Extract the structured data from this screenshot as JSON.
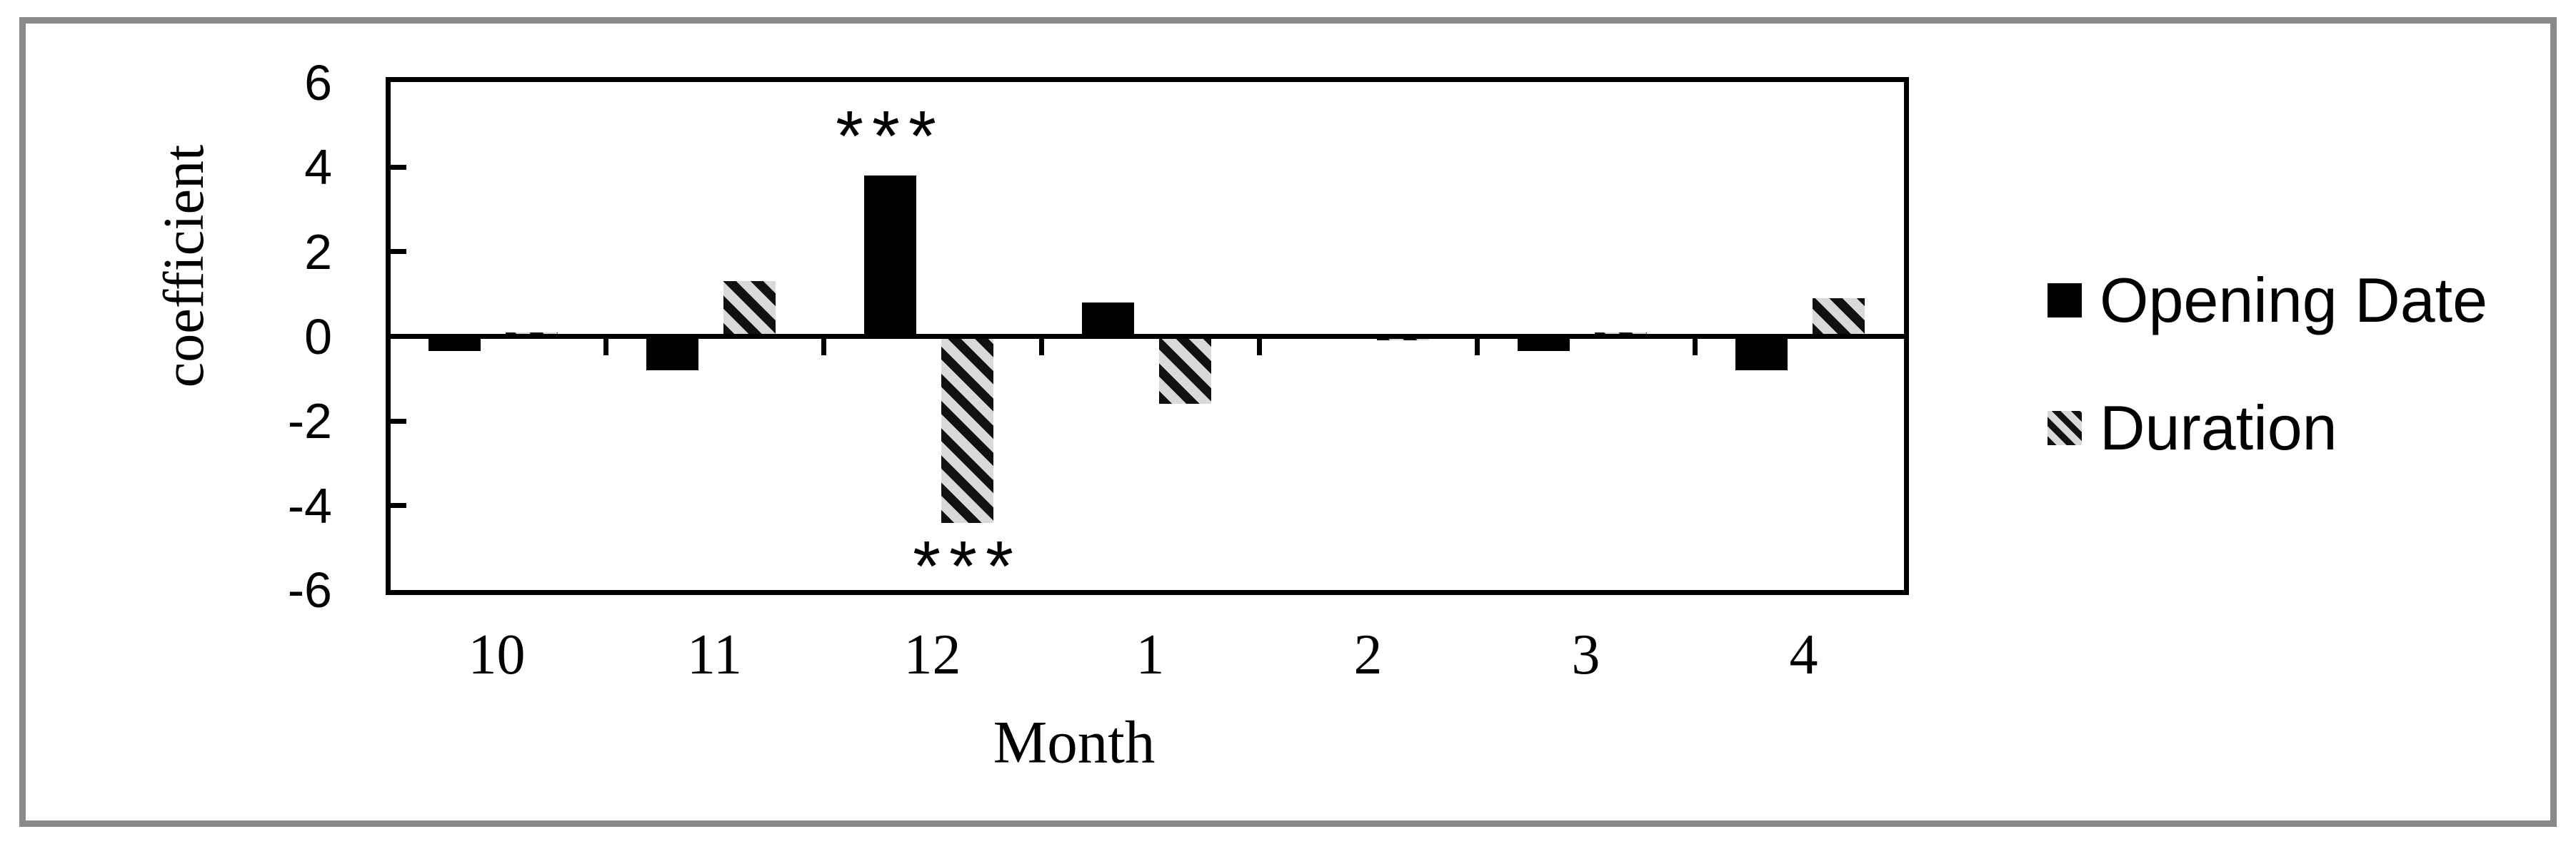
{
  "figure": {
    "background": "#ffffff",
    "border_color": "#8a8a8a"
  },
  "colors": {
    "bar_solid_fill": "#000000",
    "hatch_dark": "#111111",
    "hatch_light": "#d9d9d9",
    "axis_line": "#000000"
  },
  "chart_data": {
    "type": "bar",
    "categories": [
      "10",
      "11",
      "12",
      "1",
      "2",
      "3",
      "4"
    ],
    "series": [
      {
        "name": "Opening Date",
        "style": "solid",
        "values": [
          -0.35,
          -0.8,
          3.8,
          0.8,
          0,
          -0.35,
          -0.8
        ]
      },
      {
        "name": "Duration",
        "style": "hatch",
        "values": [
          0.1,
          1.3,
          -4.4,
          -1.6,
          -0.1,
          0.1,
          0.9
        ]
      }
    ],
    "xlabel": "Month",
    "ylabel": "coefficient",
    "ylim": [
      -6,
      6
    ],
    "ytick_labels": [
      "6",
      "4",
      "2",
      "0",
      "-2",
      "-4",
      "-6"
    ],
    "yticks": [
      6,
      4,
      2,
      0,
      -2,
      -4,
      -6
    ],
    "grid": false,
    "legend_position": "right",
    "annotations": [
      {
        "series": "Opening Date",
        "category": "12",
        "text": "***",
        "placement": "above"
      },
      {
        "series": "Duration",
        "category": "12",
        "text": "***",
        "placement": "below"
      }
    ]
  }
}
